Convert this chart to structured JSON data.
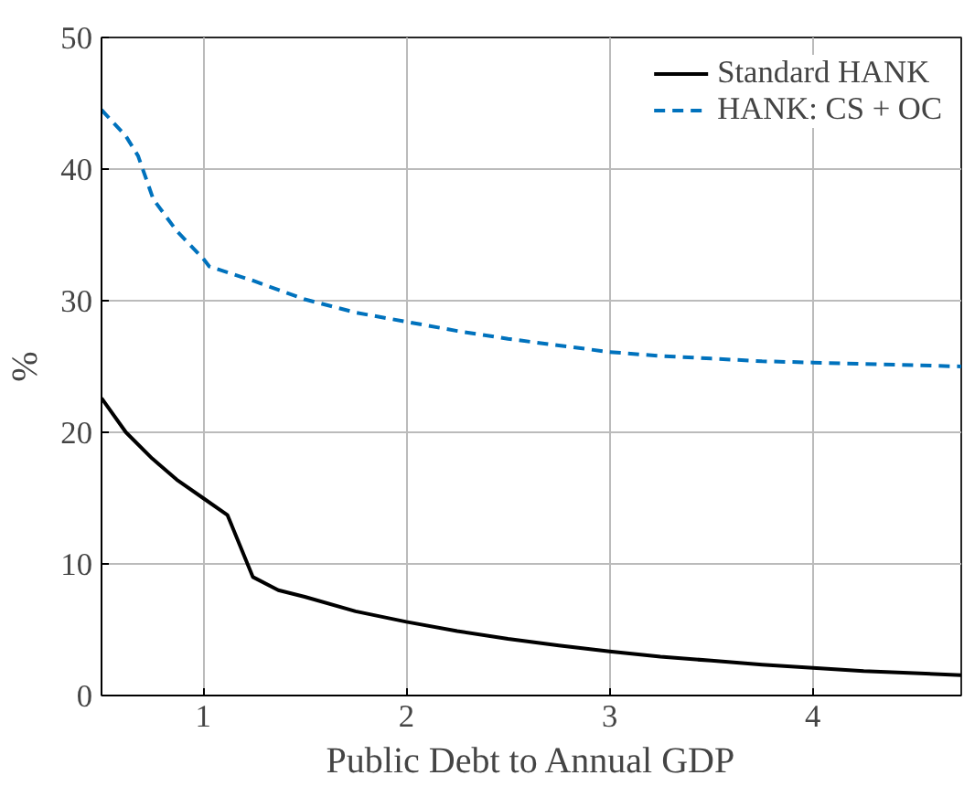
{
  "chart_data": {
    "type": "line",
    "xlabel": "Public Debt to Annual GDP",
    "ylabel": "%",
    "xlim": [
      0.5,
      4.73
    ],
    "ylim": [
      0,
      50
    ],
    "xticks": [
      1,
      2,
      3,
      4
    ],
    "yticks": [
      0,
      10,
      20,
      30,
      40,
      50
    ],
    "grid": true,
    "legend": "top right",
    "series": [
      {
        "name": "Standard HANK",
        "color": "#000000",
        "line_style": "solid",
        "x": [
          0.5,
          0.62,
          0.75,
          0.87,
          1.0,
          1.12,
          1.245,
          1.37,
          1.5,
          1.75,
          2.0,
          2.25,
          2.5,
          2.75,
          3.0,
          3.25,
          3.5,
          3.75,
          4.0,
          4.25,
          4.5,
          4.73
        ],
        "values": [
          22.6,
          20.0,
          18.0,
          16.4,
          15.0,
          13.7,
          9.0,
          8.0,
          7.5,
          6.4,
          5.6,
          4.9,
          4.3,
          3.8,
          3.35,
          2.95,
          2.65,
          2.35,
          2.1,
          1.85,
          1.7,
          1.55
        ]
      },
      {
        "name": "HANK: CS + OC",
        "color": "#0072bd",
        "line_style": "dashed",
        "x": [
          0.5,
          0.62,
          0.68,
          0.755,
          0.87,
          1.0,
          1.03,
          1.25,
          1.5,
          1.75,
          2.0,
          2.25,
          2.5,
          2.75,
          3.0,
          3.25,
          3.5,
          3.75,
          4.0,
          4.25,
          4.5,
          4.73
        ],
        "values": [
          44.5,
          42.5,
          41.0,
          37.7,
          35.3,
          33.2,
          32.6,
          31.5,
          30.1,
          29.1,
          28.4,
          27.7,
          27.1,
          26.6,
          26.1,
          25.8,
          25.6,
          25.4,
          25.3,
          25.2,
          25.1,
          25.0
        ]
      }
    ]
  }
}
